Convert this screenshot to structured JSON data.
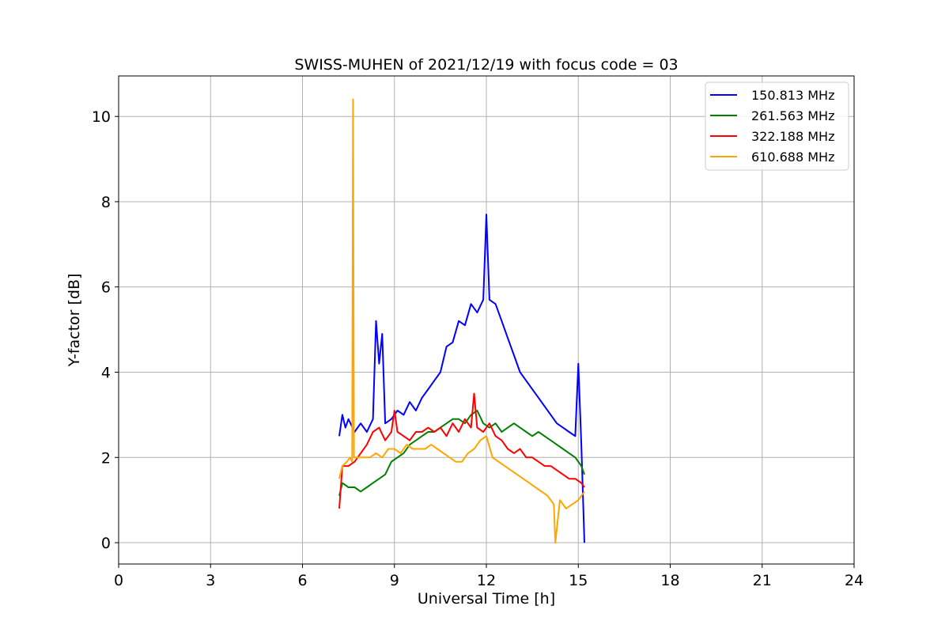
{
  "chart_data": {
    "type": "line",
    "title": "SWISS-MUHEN of 2021/12/19 with focus code = 03",
    "xlabel": "Universal Time [h]",
    "ylabel": "Y-factor [dB]",
    "xlim": [
      0,
      24
    ],
    "ylim": [
      -0.5,
      10.95
    ],
    "xticks": [
      0,
      3,
      6,
      9,
      12,
      15,
      18,
      21,
      24
    ],
    "xtick_labels": [
      "0",
      "3",
      "6",
      "9",
      "12",
      "15",
      "18",
      "21",
      "24"
    ],
    "yticks": [
      0,
      2,
      4,
      6,
      8,
      10
    ],
    "ytick_labels": [
      "0",
      "2",
      "4",
      "6",
      "8",
      "10"
    ],
    "grid": true,
    "legend_position": "top-right",
    "series": [
      {
        "name": "150.813 MHz",
        "color": "#0000ff",
        "x": [
          7.2,
          7.3,
          7.4,
          7.5,
          7.7,
          7.9,
          8.1,
          8.3,
          8.4,
          8.5,
          8.6,
          8.7,
          8.9,
          9.1,
          9.3,
          9.5,
          9.7,
          9.9,
          10.1,
          10.3,
          10.5,
          10.7,
          10.9,
          11.1,
          11.3,
          11.5,
          11.7,
          11.9,
          12.0,
          12.1,
          12.3,
          12.5,
          12.7,
          12.9,
          13.1,
          13.3,
          13.5,
          13.7,
          13.9,
          14.1,
          14.3,
          14.5,
          14.7,
          14.9,
          15.0,
          15.1,
          15.2
        ],
        "y": [
          2.5,
          3.0,
          2.7,
          2.9,
          2.6,
          2.8,
          2.6,
          2.9,
          5.2,
          4.2,
          4.9,
          2.8,
          2.9,
          3.1,
          3.0,
          3.3,
          3.1,
          3.4,
          3.6,
          3.8,
          4.0,
          4.6,
          4.7,
          5.2,
          5.1,
          5.6,
          5.4,
          5.7,
          7.7,
          5.7,
          5.6,
          5.2,
          4.8,
          4.4,
          4.0,
          3.8,
          3.6,
          3.4,
          3.2,
          3.0,
          2.8,
          2.7,
          2.6,
          2.5,
          4.2,
          2.3,
          0.0
        ]
      },
      {
        "name": "261.563 MHz",
        "color": "#008000",
        "x": [
          7.2,
          7.3,
          7.5,
          7.7,
          7.9,
          8.1,
          8.3,
          8.5,
          8.7,
          8.9,
          9.1,
          9.3,
          9.5,
          9.7,
          9.9,
          10.1,
          10.3,
          10.5,
          10.7,
          10.9,
          11.1,
          11.3,
          11.5,
          11.7,
          11.9,
          12.1,
          12.3,
          12.5,
          12.7,
          12.9,
          13.1,
          13.3,
          13.5,
          13.7,
          13.9,
          14.1,
          14.3,
          14.5,
          14.7,
          14.9,
          15.1,
          15.2
        ],
        "y": [
          1.1,
          1.4,
          1.3,
          1.3,
          1.2,
          1.3,
          1.4,
          1.5,
          1.6,
          1.9,
          2.0,
          2.1,
          2.3,
          2.4,
          2.5,
          2.6,
          2.6,
          2.7,
          2.8,
          2.9,
          2.9,
          2.8,
          3.0,
          3.1,
          2.8,
          2.7,
          2.8,
          2.6,
          2.7,
          2.8,
          2.7,
          2.6,
          2.5,
          2.6,
          2.5,
          2.4,
          2.3,
          2.2,
          2.1,
          2.0,
          1.8,
          1.6
        ]
      },
      {
        "name": "322.188 MHz",
        "color": "#ff0000",
        "x": [
          7.2,
          7.3,
          7.5,
          7.7,
          7.9,
          8.1,
          8.3,
          8.5,
          8.7,
          8.9,
          9.0,
          9.1,
          9.3,
          9.5,
          9.7,
          9.9,
          10.1,
          10.3,
          10.5,
          10.7,
          10.9,
          11.1,
          11.3,
          11.5,
          11.6,
          11.7,
          11.9,
          12.1,
          12.3,
          12.5,
          12.7,
          12.9,
          13.1,
          13.3,
          13.5,
          13.7,
          13.9,
          14.1,
          14.3,
          14.5,
          14.7,
          14.9,
          15.1,
          15.2
        ],
        "y": [
          0.8,
          1.8,
          1.8,
          1.9,
          2.1,
          2.3,
          2.6,
          2.7,
          2.4,
          2.6,
          3.1,
          2.6,
          2.5,
          2.4,
          2.6,
          2.6,
          2.7,
          2.6,
          2.7,
          2.5,
          2.8,
          2.6,
          2.9,
          2.7,
          3.5,
          2.7,
          2.6,
          2.8,
          2.5,
          2.4,
          2.2,
          2.1,
          2.2,
          2.0,
          2.0,
          1.9,
          1.8,
          1.8,
          1.7,
          1.6,
          1.5,
          1.5,
          1.4,
          1.3
        ]
      },
      {
        "name": "610.688 MHz",
        "color": "#ffa500",
        "x": [
          7.2,
          7.3,
          7.45,
          7.55,
          7.62,
          7.65,
          7.68,
          7.8,
          8.0,
          8.2,
          8.4,
          8.6,
          8.8,
          9.0,
          9.2,
          9.4,
          9.6,
          9.8,
          10.0,
          10.2,
          10.4,
          10.6,
          10.8,
          11.0,
          11.2,
          11.4,
          11.6,
          11.8,
          12.0,
          12.2,
          12.4,
          12.6,
          12.8,
          13.0,
          13.2,
          13.4,
          13.6,
          13.8,
          14.0,
          14.2,
          14.25,
          14.4,
          14.6,
          14.8,
          15.0,
          15.2
        ],
        "y": [
          1.5,
          1.8,
          1.9,
          2.0,
          1.9,
          10.4,
          2.0,
          2.0,
          2.0,
          2.0,
          2.1,
          2.0,
          2.2,
          2.2,
          2.1,
          2.3,
          2.2,
          2.2,
          2.2,
          2.3,
          2.2,
          2.1,
          2.0,
          1.9,
          1.9,
          2.1,
          2.2,
          2.4,
          2.5,
          2.0,
          1.9,
          1.8,
          1.7,
          1.6,
          1.5,
          1.4,
          1.3,
          1.2,
          1.1,
          0.9,
          0.0,
          1.0,
          0.8,
          0.9,
          1.0,
          1.2
        ]
      }
    ]
  }
}
